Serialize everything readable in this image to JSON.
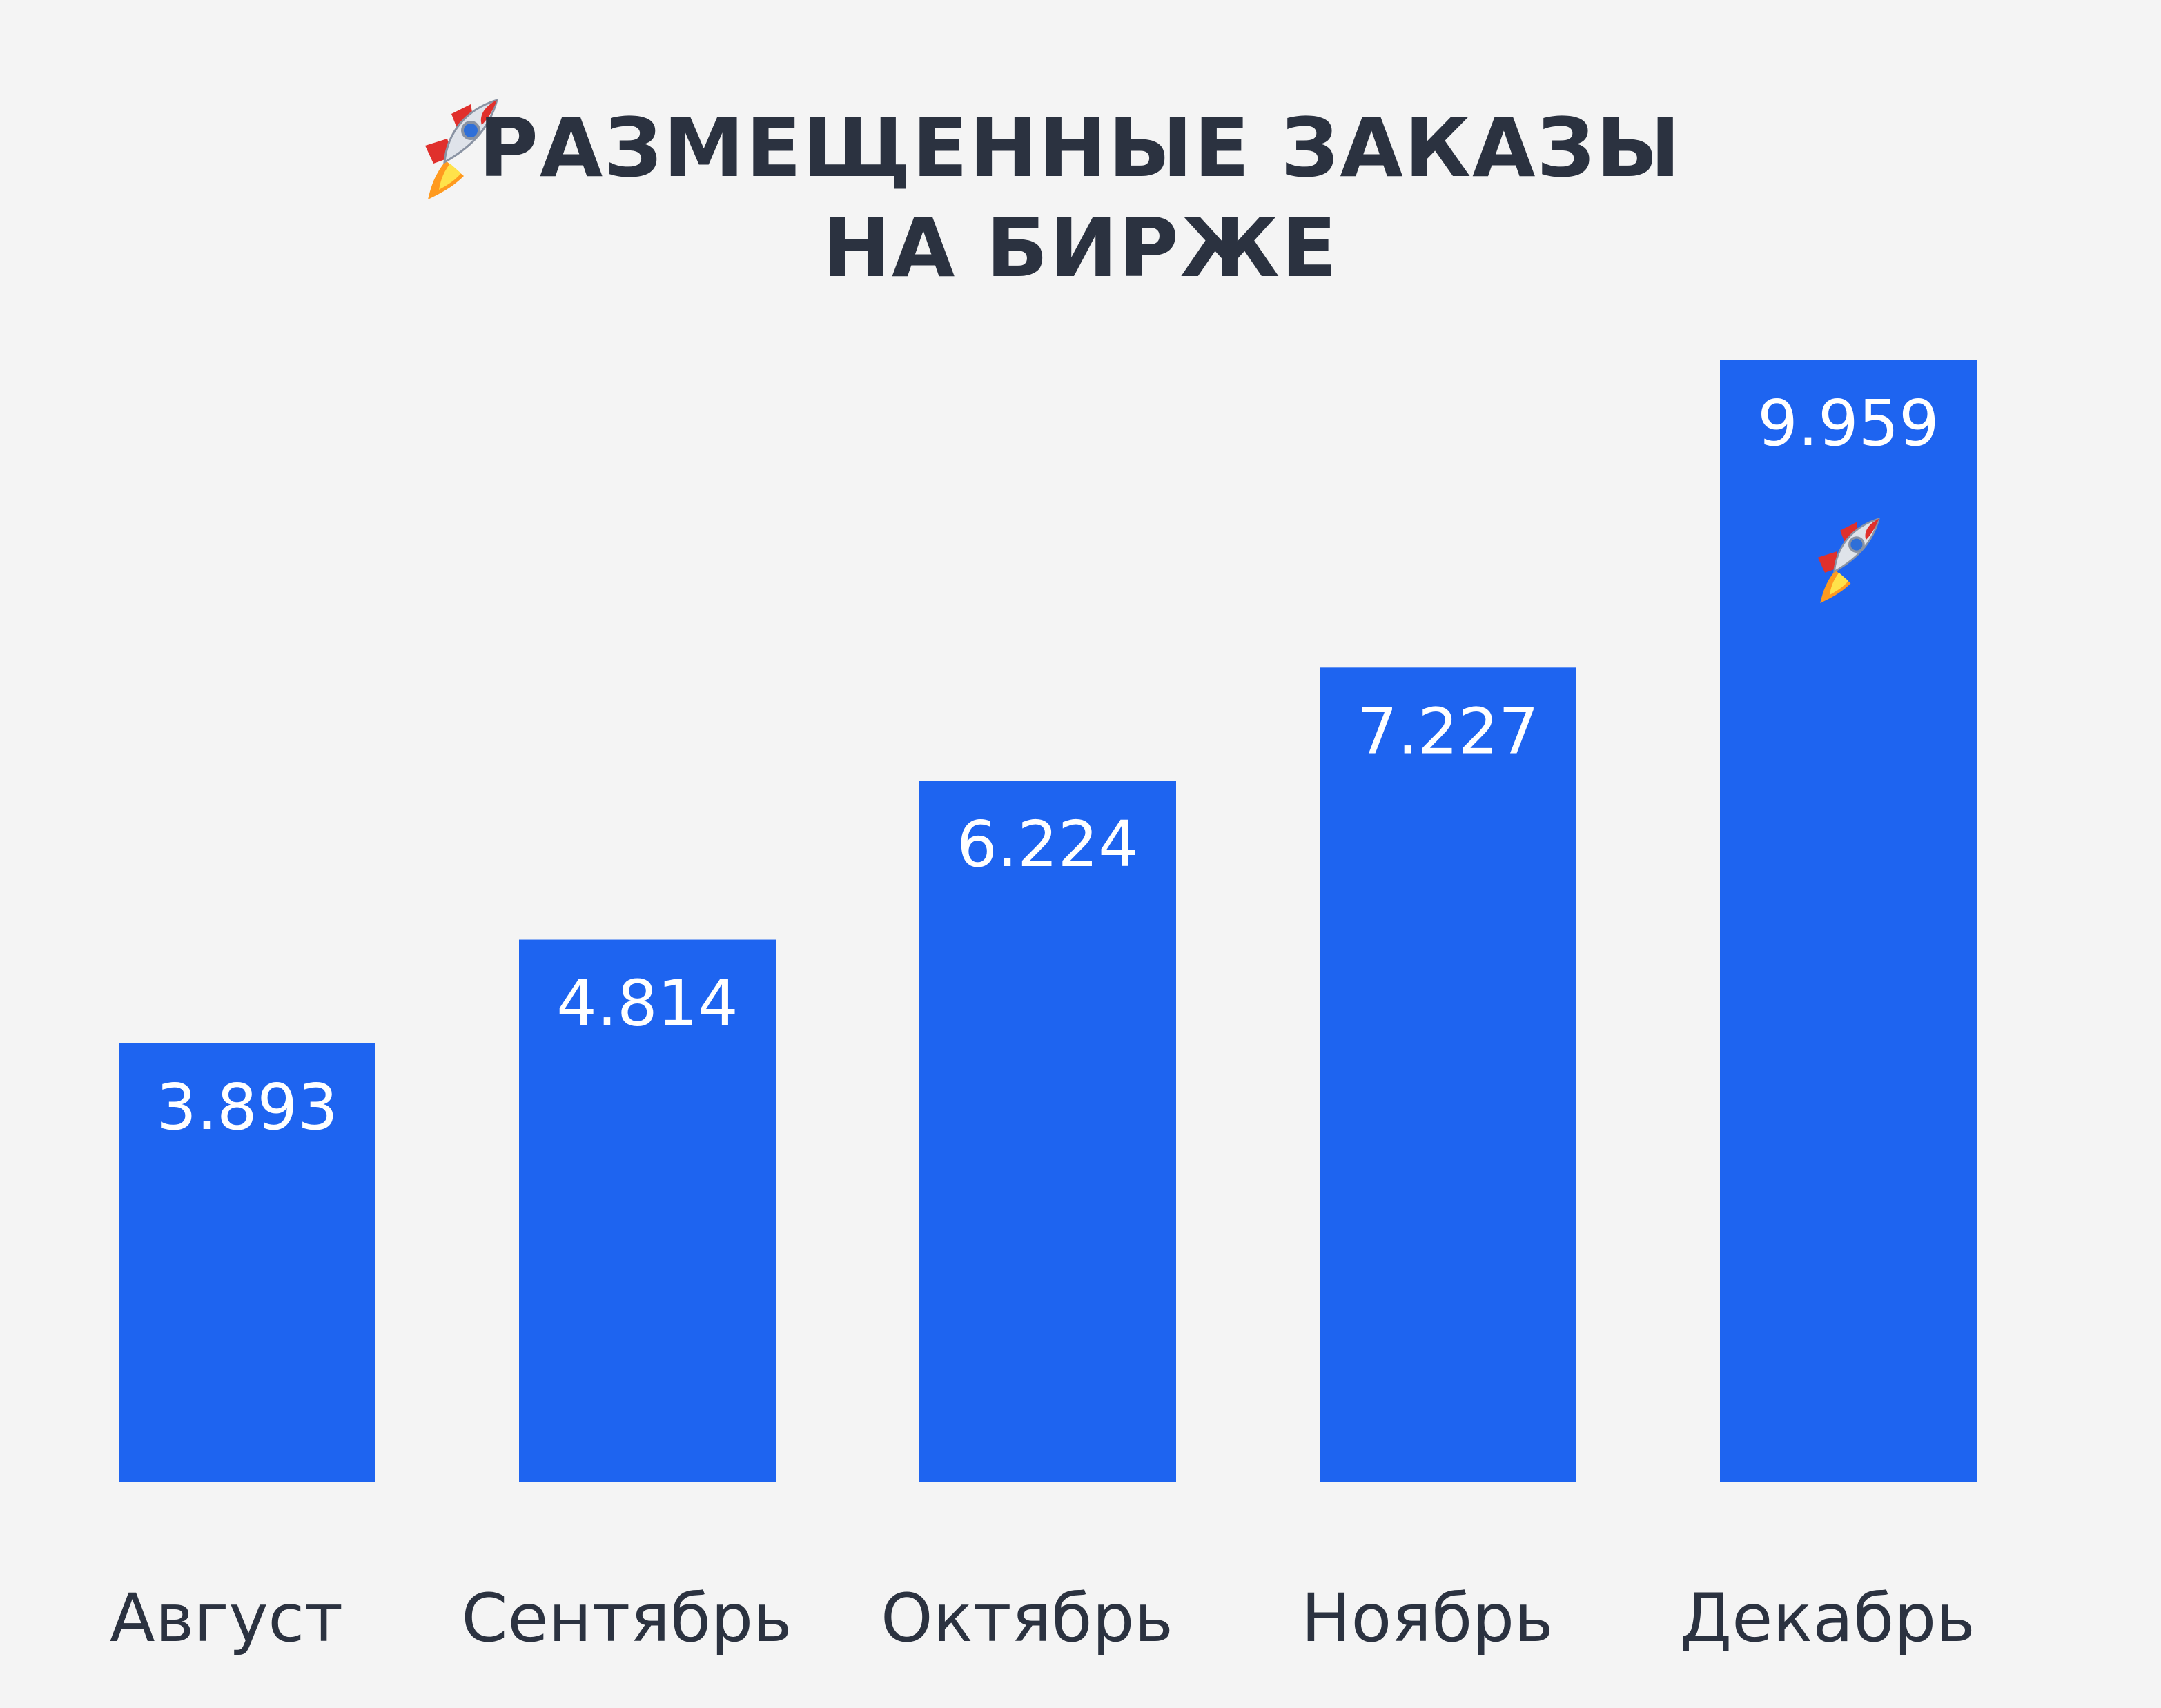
{
  "title": {
    "line1": "РАЗМЕЩЕННЫЕ ЗАКАЗЫ",
    "line2": "НА БИРЖЕ",
    "icon": "rocket-icon"
  },
  "colors": {
    "background": "#f4f4f4",
    "bar": "#1e64f0",
    "text": "#2b3240",
    "value_text": "#ffffff"
  },
  "chart_data": {
    "type": "bar",
    "title": "РАЗМЕЩЕННЫЕ ЗАКАЗЫ НА БИРЖЕ",
    "categories": [
      "Август",
      "Сентябрь",
      "Октябрь",
      "Ноябрь",
      "Декабрь"
    ],
    "values": [
      3893,
      4814,
      6224,
      7227,
      9959
    ],
    "value_labels": [
      "3.893",
      "4.814",
      "6.224",
      "7.227",
      "9.959"
    ],
    "xlabel": "",
    "ylabel": "",
    "ylim": [
      0,
      9959
    ],
    "grid": false,
    "legend": "none",
    "highlight": {
      "category": "Декабрь",
      "icon": "rocket-icon"
    }
  }
}
